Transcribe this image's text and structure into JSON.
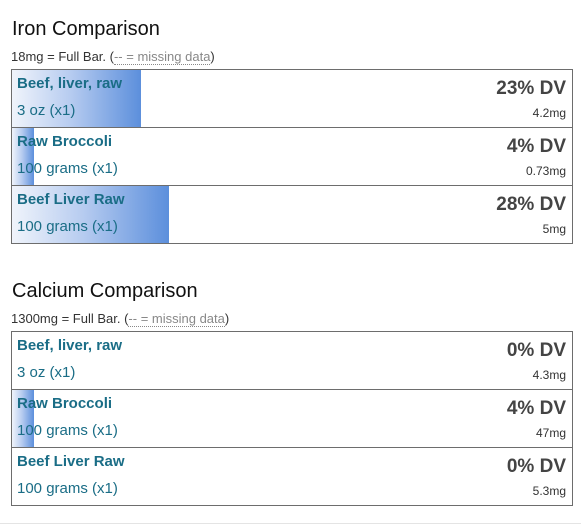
{
  "sections": [
    {
      "title": "Iron Comparison",
      "full_bar": "18mg = Full Bar. (",
      "missing_note": "-- = missing data",
      "close_paren": ")",
      "rows": [
        {
          "name": "Beef, liver, raw",
          "qty": "3 oz (x1)",
          "dv": "23% DV",
          "amount": "4.2mg",
          "fill": 0.23
        },
        {
          "name": "Raw Broccoli",
          "qty": "100 grams (x1)",
          "dv": "4% DV",
          "amount": "0.73mg",
          "fill": 0.04
        },
        {
          "name": "Beef Liver Raw",
          "qty": "100 grams (x1)",
          "dv": "28% DV",
          "amount": "5mg",
          "fill": 0.28
        }
      ]
    },
    {
      "title": "Calcium Comparison",
      "full_bar": "1300mg = Full Bar. (",
      "missing_note": "-- = missing data",
      "close_paren": ")",
      "rows": [
        {
          "name": "Beef, liver, raw",
          "qty": "3 oz (x1)",
          "dv": "0% DV",
          "amount": "4.3mg",
          "fill": 0.0
        },
        {
          "name": "Raw Broccoli",
          "qty": "100 grams (x1)",
          "dv": "4% DV",
          "amount": "47mg",
          "fill": 0.04
        },
        {
          "name": "Beef Liver Raw",
          "qty": "100 grams (x1)",
          "dv": "0% DV",
          "amount": "5.3mg",
          "fill": 0.0
        }
      ]
    }
  ]
}
